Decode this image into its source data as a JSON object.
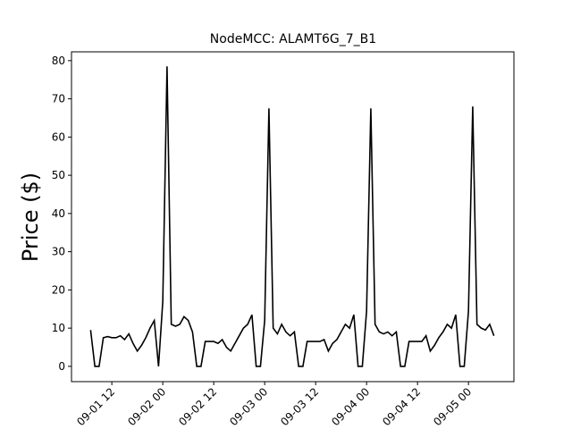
{
  "chart_data": {
    "type": "line",
    "title": "NodeMCC: ALAMT6G_7_B1",
    "y_label": "Price ($)",
    "x": [
      7,
      8,
      9,
      10,
      11,
      12,
      13,
      14,
      15,
      16,
      17,
      18,
      19,
      20,
      21,
      22,
      23,
      24,
      25,
      26,
      27,
      28,
      29,
      30,
      31,
      32,
      33,
      34,
      35,
      36,
      37,
      38,
      39,
      40,
      41,
      42,
      43,
      44,
      45,
      46,
      47,
      48,
      49,
      50,
      51,
      52,
      53,
      54,
      55,
      56,
      57,
      58,
      59,
      60,
      61,
      62,
      63,
      64,
      65,
      66,
      67,
      68,
      69,
      70,
      71,
      72,
      73,
      74,
      75,
      76,
      77,
      78,
      79,
      80,
      81,
      82,
      83,
      84,
      85,
      86,
      87,
      88,
      89,
      90,
      91,
      92,
      93,
      94,
      95,
      96,
      97,
      98,
      99,
      100,
      101,
      102
    ],
    "series": [
      {
        "name": "Price",
        "color": "#000000",
        "values": [
          9.5,
          0,
          0,
          7.5,
          7.8,
          7.5,
          7.5,
          8,
          7,
          8.5,
          6,
          4,
          5.5,
          7.5,
          10,
          12,
          0,
          17,
          78.5,
          11,
          10.5,
          11,
          13,
          12,
          9,
          0,
          0,
          6.5,
          6.5,
          6.5,
          6,
          7,
          5,
          4,
          6,
          8,
          10,
          11,
          13.5,
          0,
          0,
          12,
          67.5,
          10,
          8.5,
          11,
          9,
          8,
          9,
          0,
          0,
          6.5,
          6.5,
          6.5,
          6.5,
          7,
          4,
          6,
          7,
          9,
          11,
          10,
          13.5,
          0,
          0,
          14.5,
          67.5,
          11,
          9,
          8.5,
          9,
          8,
          9,
          0,
          0,
          6.5,
          6.5,
          6.5,
          6.5,
          8,
          4,
          5.5,
          7.5,
          9,
          11,
          10,
          13.5,
          0,
          0,
          14.5,
          68,
          11,
          10,
          9.5,
          11,
          8
        ]
      }
    ],
    "xlim": [
      2.5,
      106.7
    ],
    "xticks": [
      {
        "value": 12,
        "label": "09-01 12"
      },
      {
        "value": 24,
        "label": "09-02 00"
      },
      {
        "value": 36,
        "label": "09-02 12"
      },
      {
        "value": 48,
        "label": "09-03 00"
      },
      {
        "value": 60,
        "label": "09-03 12"
      },
      {
        "value": 72,
        "label": "09-04 00"
      },
      {
        "value": 84,
        "label": "09-04 12"
      },
      {
        "value": 96,
        "label": "09-05 00"
      }
    ],
    "ylim": [
      -4,
      82.3
    ],
    "yticks": [
      0,
      10,
      20,
      30,
      40,
      50,
      60,
      70,
      80
    ]
  }
}
